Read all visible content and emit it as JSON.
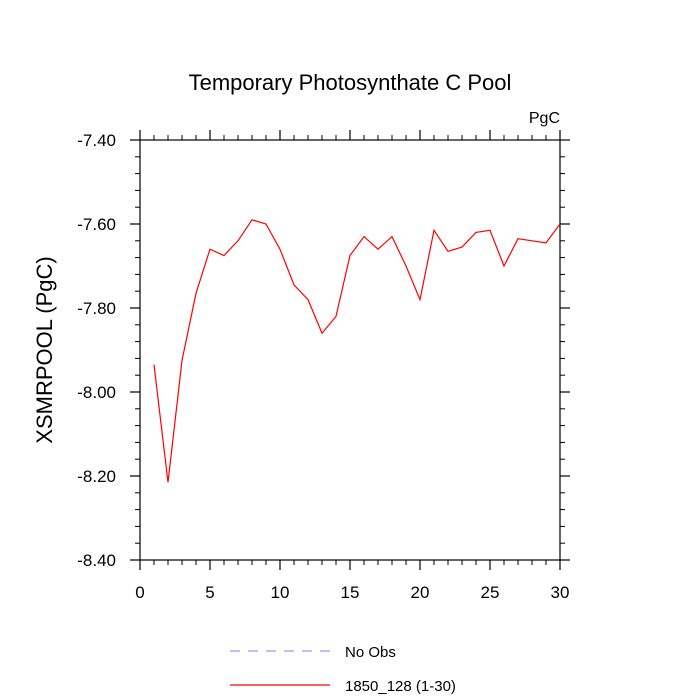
{
  "chart_data": {
    "type": "line",
    "title": "Temporary Photosynthate C Pool",
    "units_label": "PgC",
    "ylabel": "XSMRPOOL  (PgC)",
    "xlabel": "",
    "xlim": [
      0,
      30
    ],
    "ylim": [
      -8.4,
      -7.4
    ],
    "x_ticks": [
      0,
      5,
      10,
      15,
      20,
      25,
      30
    ],
    "x_tick_labels": [
      "0",
      "5",
      "10",
      "15",
      "20",
      "25",
      "30"
    ],
    "y_ticks": [
      -7.4,
      -7.6,
      -7.8,
      -8.0,
      -8.2,
      -8.4
    ],
    "y_tick_labels": [
      "-7.40",
      "-7.60",
      "-7.80",
      "-8.00",
      "-8.20",
      "-8.40"
    ],
    "grid": false,
    "legend_position": "bottom",
    "series": [
      {
        "name": "1850_128 (1-30)",
        "color": "#ff0000",
        "dash": false,
        "x": [
          1,
          2,
          3,
          4,
          5,
          6,
          7,
          8,
          9,
          10,
          11,
          12,
          13,
          14,
          15,
          16,
          17,
          18,
          19,
          20,
          21,
          22,
          23,
          24,
          25,
          26,
          27,
          28,
          29,
          30
        ],
        "y": [
          -7.935,
          -8.215,
          -7.925,
          -7.765,
          -7.66,
          -7.675,
          -7.64,
          -7.59,
          -7.6,
          -7.66,
          -7.745,
          -7.78,
          -7.86,
          -7.82,
          -7.675,
          -7.63,
          -7.66,
          -7.63,
          -7.7,
          -7.78,
          -7.615,
          -7.665,
          -7.655,
          -7.62,
          -7.615,
          -7.7,
          -7.635,
          -7.64,
          -7.645,
          -7.6
        ]
      },
      {
        "name": "No Obs",
        "color": "#9999ff",
        "dash": true,
        "x": [],
        "y": []
      }
    ]
  }
}
